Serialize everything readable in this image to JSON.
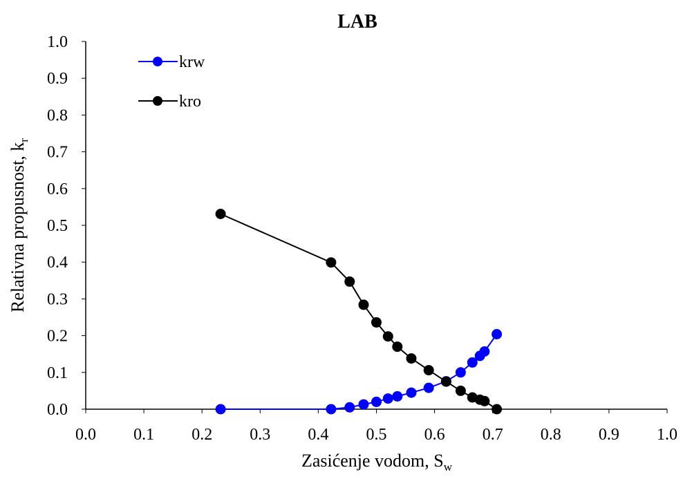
{
  "chart_data": {
    "type": "line",
    "title": "LAB",
    "xlabel": {
      "main": "Zasićenje vodom, S",
      "sub": "w"
    },
    "ylabel": {
      "main": "Relativna propusnost, k",
      "sub": "r"
    },
    "xlim": [
      0.0,
      1.0
    ],
    "ylim": [
      0.0,
      1.0
    ],
    "xticks": [
      "0.0",
      "0.1",
      "0.2",
      "0.3",
      "0.4",
      "0.5",
      "0.6",
      "0.7",
      "0.8",
      "0.9",
      "1.0"
    ],
    "yticks": [
      "0.0",
      "0.1",
      "0.2",
      "0.3",
      "0.4",
      "0.5",
      "0.6",
      "0.7",
      "0.8",
      "0.9",
      "1.0"
    ],
    "grid": false,
    "legend_position": "top-left",
    "series": [
      {
        "name": "krw",
        "color": "#0000ff",
        "x": [
          0.232,
          0.422,
          0.454,
          0.478,
          0.5,
          0.52,
          0.536,
          0.56,
          0.59,
          0.62,
          0.645,
          0.665,
          0.678,
          0.686,
          0.707
        ],
        "y": [
          0.0,
          0.0,
          0.005,
          0.013,
          0.02,
          0.029,
          0.035,
          0.045,
          0.058,
          0.076,
          0.1,
          0.127,
          0.145,
          0.157,
          0.204
        ]
      },
      {
        "name": "kro",
        "color": "#000000",
        "x": [
          0.232,
          0.422,
          0.454,
          0.478,
          0.5,
          0.52,
          0.536,
          0.56,
          0.59,
          0.62,
          0.645,
          0.665,
          0.678,
          0.686,
          0.707
        ],
        "y": [
          0.531,
          0.399,
          0.347,
          0.284,
          0.236,
          0.198,
          0.17,
          0.138,
          0.106,
          0.075,
          0.05,
          0.032,
          0.026,
          0.022,
          0.0
        ]
      }
    ]
  }
}
